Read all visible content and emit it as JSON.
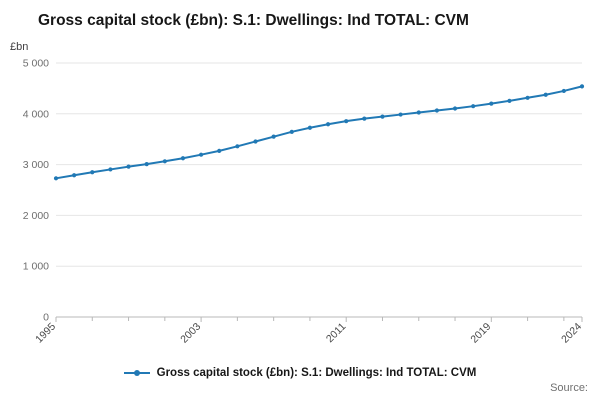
{
  "page": {
    "title": "Gross capital stock (£bn): S.1: Dwellings: Ind TOTAL: CVM",
    "y_unit_label": "£bn",
    "legend_label": "Gross capital stock (£bn): S.1: Dwellings: Ind TOTAL: CVM",
    "source_label": "Source:"
  },
  "chart_data": {
    "type": "line",
    "title": "Gross capital stock (£bn): S.1: Dwellings: Ind TOTAL: CVM",
    "xlabel": "",
    "ylabel": "£bn",
    "x": [
      1995,
      1996,
      1997,
      1998,
      1999,
      2000,
      2001,
      2002,
      2003,
      2004,
      2005,
      2006,
      2007,
      2008,
      2009,
      2010,
      2011,
      2012,
      2013,
      2014,
      2015,
      2016,
      2017,
      2018,
      2019,
      2020,
      2021,
      2022,
      2023,
      2024
    ],
    "values": [
      2730,
      2790,
      2850,
      2905,
      2960,
      3010,
      3065,
      3125,
      3195,
      3270,
      3360,
      3455,
      3550,
      3645,
      3725,
      3795,
      3855,
      3905,
      3945,
      3985,
      4025,
      4065,
      4105,
      4150,
      4200,
      4255,
      4315,
      4375,
      4450,
      4540
    ],
    "ylim": [
      0,
      5000
    ],
    "yticks": [
      0,
      1000,
      2000,
      3000,
      4000,
      5000
    ],
    "ytick_labels": [
      "0",
      "1 000",
      "2 000",
      "3 000",
      "4 000",
      "5 000"
    ],
    "xtick_labeled": [
      1995,
      2003,
      2011,
      2019,
      2024
    ],
    "xticks_minor": [
      1997,
      1999,
      2001,
      2005,
      2007,
      2009,
      2013,
      2015,
      2017,
      2021,
      2023
    ],
    "grid": true,
    "legend_position": "bottom",
    "line_color": "#2179b5",
    "axis_color": "#b8b8b8",
    "grid_color": "#e6e6e6",
    "tick_label_color": "#6e6e6e"
  }
}
